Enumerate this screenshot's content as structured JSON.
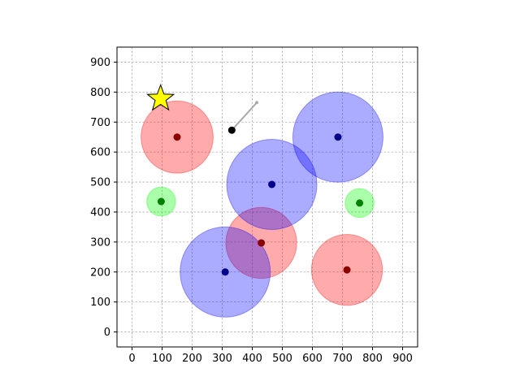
{
  "chart_data": {
    "type": "scatter",
    "title": "",
    "xlabel": "",
    "ylabel": "",
    "xlim": [
      -50,
      950
    ],
    "ylim": [
      -50,
      950
    ],
    "xticks": [
      0,
      100,
      200,
      300,
      400,
      500,
      600,
      700,
      800,
      900
    ],
    "yticks": [
      0,
      100,
      200,
      300,
      400,
      500,
      600,
      700,
      800,
      900
    ],
    "grid": true,
    "colors": {
      "red_fill": "#ff0000",
      "red_center": "#8b0000",
      "blue_fill": "#0000ff",
      "blue_center": "#00008b",
      "green_fill": "#00ff00",
      "green_center": "#008000",
      "star": "#ffff00",
      "agent": "#000000",
      "heading_line": "#aaaaaa"
    },
    "circles": [
      {
        "group": "red",
        "x": 150,
        "y": 650,
        "r": 120
      },
      {
        "group": "red",
        "x": 430,
        "y": 297,
        "r": 118
      },
      {
        "group": "red",
        "x": 715,
        "y": 207,
        "r": 118
      },
      {
        "group": "blue",
        "x": 465,
        "y": 492,
        "r": 150
      },
      {
        "group": "blue",
        "x": 685,
        "y": 650,
        "r": 150
      },
      {
        "group": "blue",
        "x": 310,
        "y": 200,
        "r": 150
      },
      {
        "group": "green",
        "x": 97,
        "y": 435,
        "r": 48
      },
      {
        "group": "green",
        "x": 757,
        "y": 430,
        "r": 48
      }
    ],
    "star": {
      "x": 95,
      "y": 778
    },
    "agent": {
      "x": 332,
      "y": 673
    },
    "heading_end": {
      "x": 415,
      "y": 765
    }
  }
}
